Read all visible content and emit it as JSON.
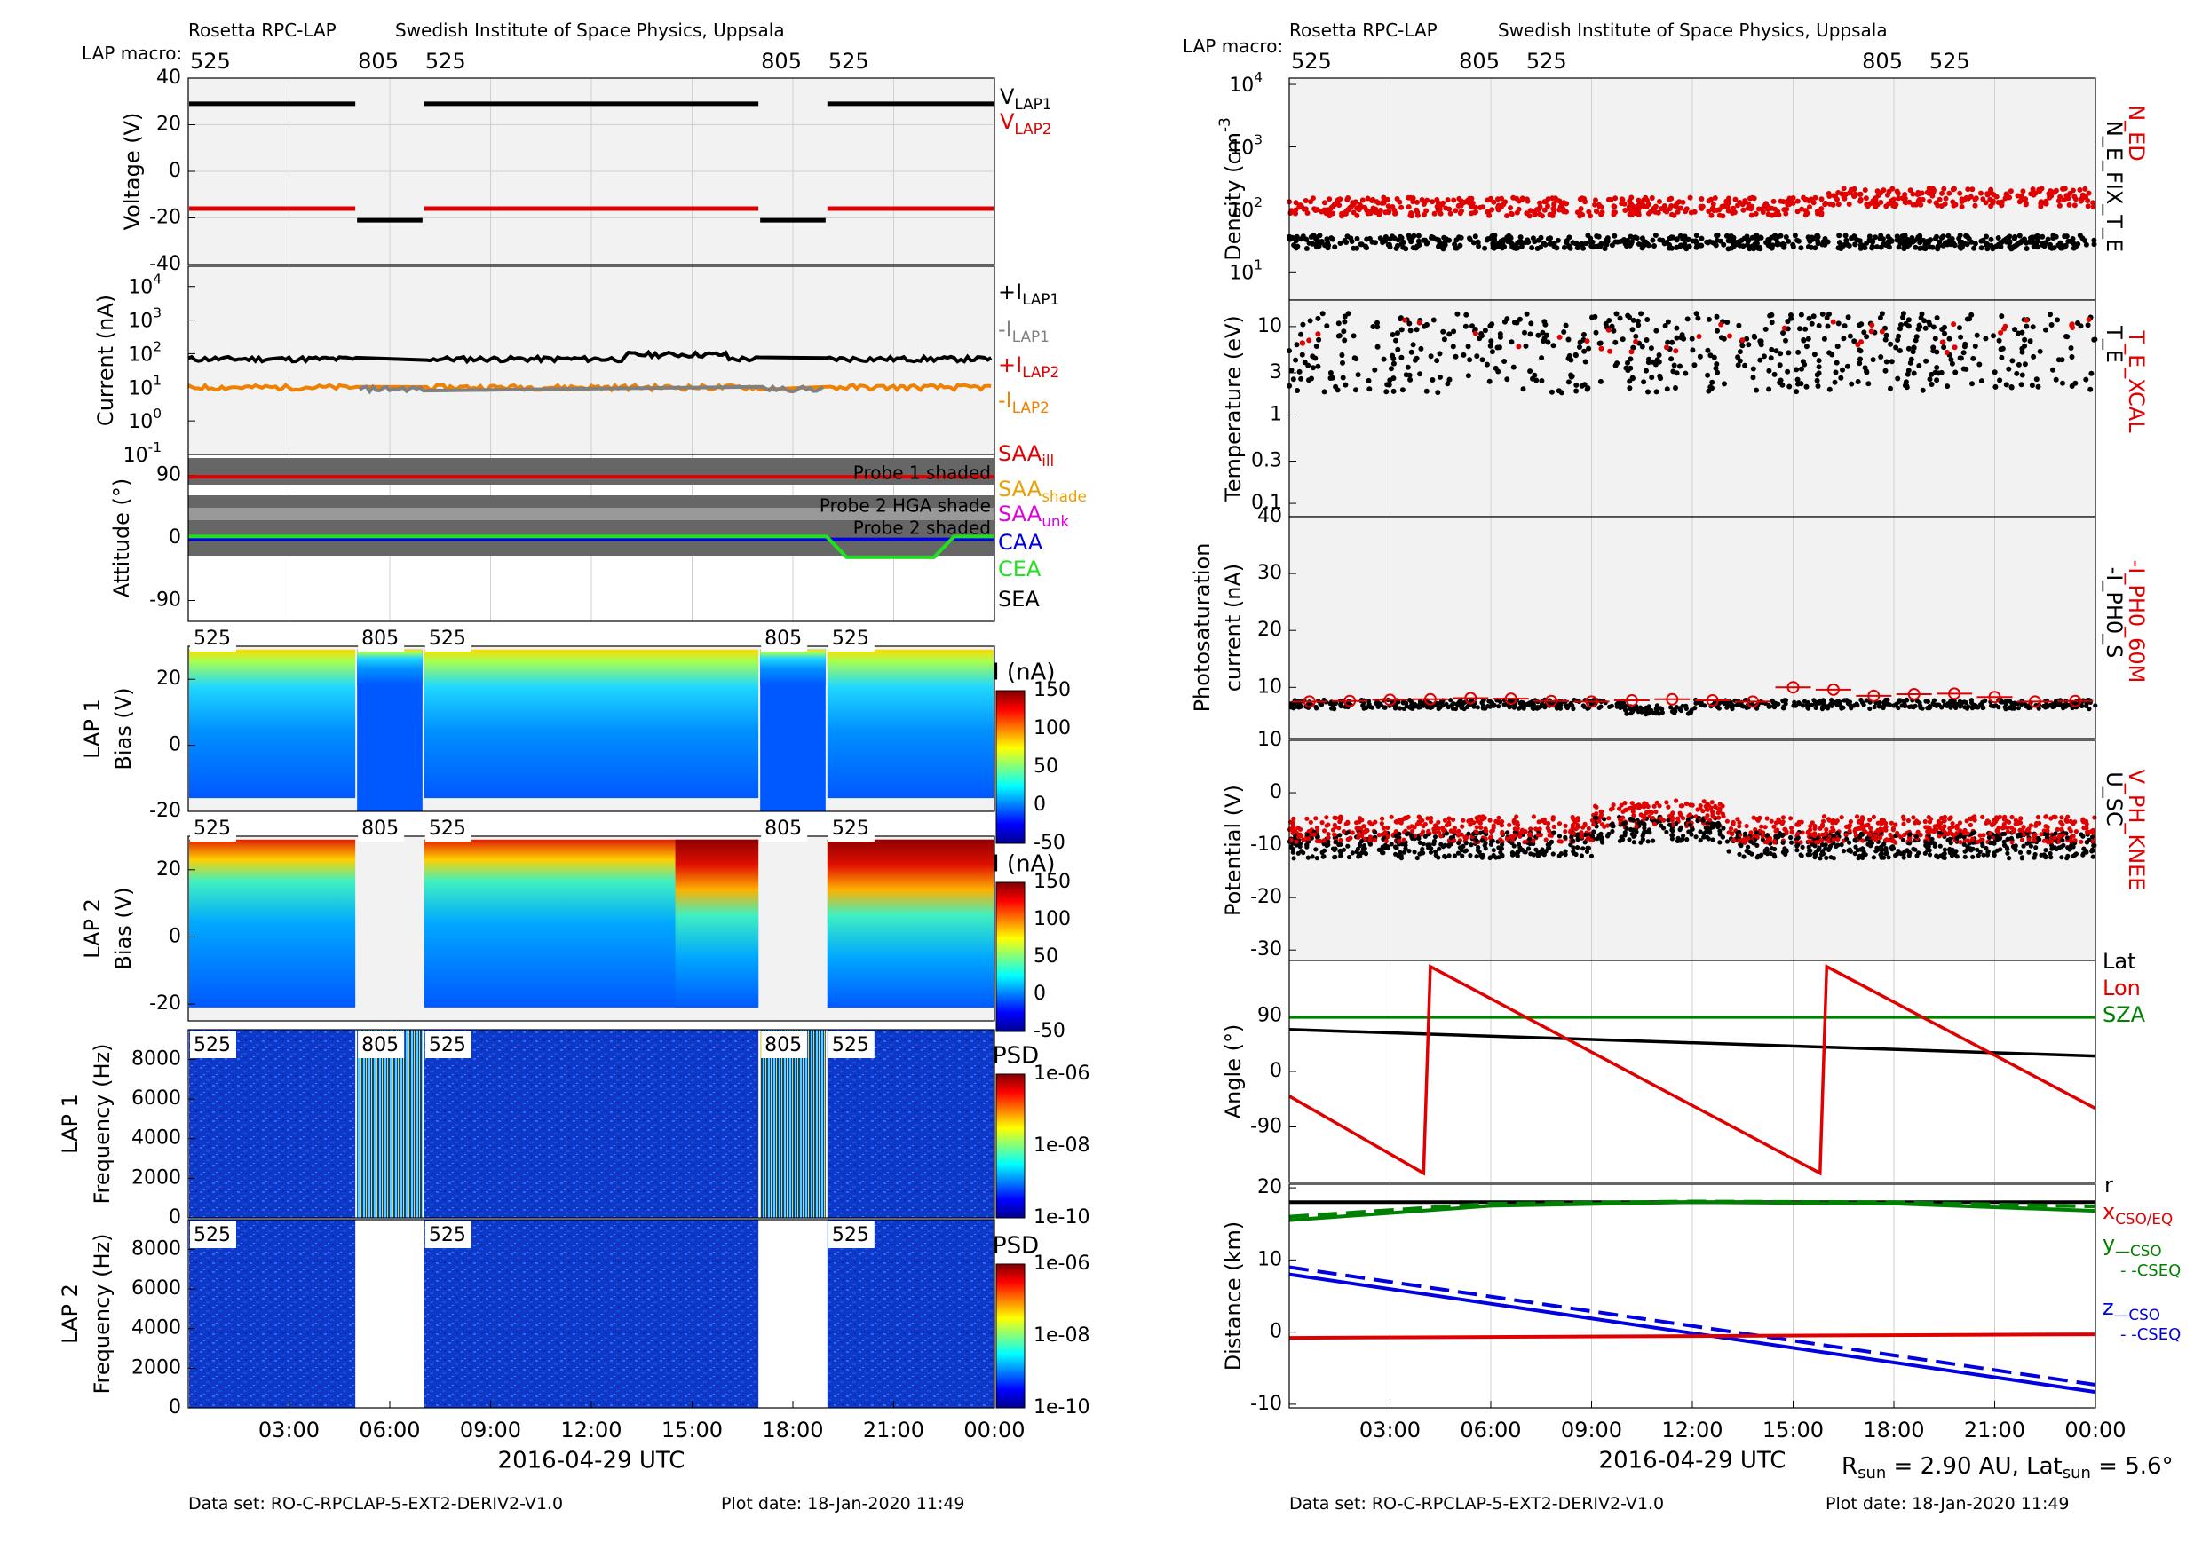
{
  "header": {
    "instrument": "Rosetta RPC-LAP",
    "institute": "Swedish Institute of Space Physics, Uppsala",
    "macro_label": "LAP macro:",
    "dataset": "Data set: RO-C-RPCLAP-5-EXT2-DERIV2-V1.0",
    "plot_date": "Plot date: 18-Jan-2020 11:49",
    "xlabel": "2016-04-29 UTC",
    "rsun": "R_sun = 2.90 AU, Lat_sun = 5.6°"
  },
  "time_axis": {
    "range_hours": [
      0,
      24
    ],
    "tick_labels": [
      "03:00",
      "06:00",
      "09:00",
      "12:00",
      "15:00",
      "18:00",
      "21:00",
      "00:00"
    ],
    "tick_hours": [
      3,
      6,
      9,
      12,
      15,
      18,
      21,
      24
    ]
  },
  "macros": [
    {
      "label": "525",
      "start": 0,
      "end": 5.0
    },
    {
      "label": "805",
      "start": 5.0,
      "end": 7.0
    },
    {
      "label": "525",
      "start": 7.0,
      "end": 17.0
    },
    {
      "label": "805",
      "start": 17.0,
      "end": 19.0
    },
    {
      "label": "525",
      "start": 19.0,
      "end": 24.0
    }
  ],
  "chart_data": [
    {
      "id": "voltage",
      "type": "line",
      "ylabel": "Voltage (V)",
      "ylim": [
        -40,
        40
      ],
      "yticks": [
        -40,
        -20,
        0,
        20,
        40
      ],
      "legend": [
        {
          "name": "V_LAP1",
          "color": "#000000"
        },
        {
          "name": "V_LAP2",
          "color": "#e00000"
        }
      ],
      "series": [
        {
          "name": "V_LAP1",
          "color": "#000000",
          "segments": [
            [
              0,
              5.0,
              29
            ],
            [
              5.0,
              7.0,
              -21
            ],
            [
              7.0,
              17.0,
              29
            ],
            [
              17.0,
              19.0,
              -21
            ],
            [
              19.0,
              24.0,
              29
            ]
          ]
        },
        {
          "name": "V_LAP2",
          "color": "#e00000",
          "segments": [
            [
              0,
              5.0,
              -16
            ],
            [
              7.0,
              17.0,
              -16
            ],
            [
              19.0,
              24.0,
              -16
            ]
          ]
        }
      ]
    },
    {
      "id": "current",
      "type": "line",
      "ylabel": "Current (nA)",
      "yscale": "log",
      "ytick_exponents": [
        -1,
        0,
        1,
        2,
        3,
        4
      ],
      "legend": [
        {
          "name": "+I_LAP1",
          "color": "#000000"
        },
        {
          "name": "-I_LAP1",
          "color": "#808080"
        },
        {
          "name": "+I_LAP2",
          "color": "#e00000"
        },
        {
          "name": "-I_LAP2",
          "color": "#f08000"
        }
      ],
      "series": [
        {
          "name": "+I_LAP1",
          "color": "#000000",
          "approx_value": 70
        },
        {
          "name": "-I_LAP2",
          "color": "#f08000",
          "approx_value": 10
        },
        {
          "name": "-I_LAP1",
          "color": "#808080",
          "approx_value": 9
        }
      ]
    },
    {
      "id": "attitude",
      "type": "line",
      "ylabel": "Attitude (°)",
      "ylim": [
        -120,
        120
      ],
      "yticks": [
        -90,
        0,
        90
      ],
      "annotations": [
        "Probe 1 shaded",
        "Probe 2 HGA shade",
        "Probe 2 shaded"
      ],
      "legend": [
        {
          "name": "SAA_ill",
          "color": "#e00000"
        },
        {
          "name": "SAA_shade",
          "color": "#e8a000"
        },
        {
          "name": "SAA_unk",
          "color": "#e000e0"
        },
        {
          "name": "CAA",
          "color": "#0000e0"
        },
        {
          "name": "CEA",
          "color": "#20e020"
        },
        {
          "name": "SEA",
          "color": "#000000"
        }
      ],
      "series": [
        {
          "name": "SAA_ill",
          "color": "#e00000",
          "value": 88
        },
        {
          "name": "CAA",
          "color": "#0000e0",
          "value": -2
        },
        {
          "name": "CEA",
          "color": "#20e020",
          "value": 2,
          "dip": {
            "start": 19.0,
            "end": 22.8,
            "value": -28
          }
        }
      ]
    },
    {
      "id": "lap1bias",
      "type": "heatmap",
      "ylabel": "LAP 1 Bias (V)",
      "ylim": [
        -20,
        30
      ],
      "yticks": [
        -20,
        0,
        20
      ],
      "colorbar": {
        "label": "I (nA)",
        "ticks": [
          150,
          100,
          50,
          0,
          -50
        ]
      }
    },
    {
      "id": "lap2bias",
      "type": "heatmap",
      "ylabel": "LAP 2 Bias (V)",
      "ylim": [
        -25,
        30
      ],
      "yticks": [
        -20,
        0,
        20
      ],
      "colorbar": {
        "label": "I (nA)",
        "ticks": [
          150,
          100,
          50,
          0,
          -50
        ]
      }
    },
    {
      "id": "lap1freq",
      "type": "heatmap",
      "ylabel": "LAP 1 Frequency (Hz)",
      "ylim": [
        0,
        9500
      ],
      "yticks": [
        0,
        2000,
        4000,
        6000,
        8000
      ],
      "colorbar": {
        "label": "PSD",
        "ticks": [
          "1e-06",
          "1e-08",
          "1e-10"
        ]
      }
    },
    {
      "id": "lap2freq",
      "type": "heatmap",
      "ylabel": "LAP 2 Frequency (Hz)",
      "ylim": [
        0,
        9500
      ],
      "yticks": [
        0,
        2000,
        4000,
        6000,
        8000
      ],
      "colorbar": {
        "label": "PSD",
        "ticks": [
          "1e-06",
          "1e-08",
          "1e-10"
        ]
      }
    },
    {
      "id": "density",
      "type": "scatter",
      "ylabel": "Density (cm^-3)",
      "yscale": "log",
      "ytick_exponents": [
        1,
        2,
        3,
        4
      ],
      "legend": [
        {
          "name": "N_ED",
          "color": "#e00000"
        },
        {
          "name": "N_E_FIX_T_E",
          "color": "#000000"
        }
      ],
      "series": [
        {
          "name": "N_ED",
          "color": "#e00000",
          "approx_value": 110
        },
        {
          "name": "N_E_FIX_T_E",
          "color": "#000000",
          "approx_value": 30
        }
      ]
    },
    {
      "id": "temperature",
      "type": "scatter",
      "ylabel": "Temperature (eV)",
      "yscale": "log",
      "ytick_values": [
        0.1,
        0.3,
        1,
        3,
        10
      ],
      "ytick_labels": [
        "0.1",
        "0.3",
        "1",
        "3",
        "10"
      ],
      "legend": [
        {
          "name": "T_E_XCAL",
          "color": "#e00000"
        },
        {
          "name": "T_E",
          "color": "#000000"
        }
      ],
      "series": [
        {
          "name": "T_E",
          "color": "#000000",
          "approx_value": 5
        },
        {
          "name": "T_E_XCAL",
          "color": "#e00000",
          "approx_value": 8
        }
      ]
    },
    {
      "id": "photo",
      "type": "scatter",
      "ylabel": "Photosaturation current (nA)",
      "ylim": [
        10,
        40
      ],
      "yticks": [
        10,
        20,
        30,
        40
      ],
      "legend": [
        {
          "name": "-I_PH0_60M",
          "color": "#e00000"
        },
        {
          "name": "-I_PH0_S",
          "color": "#000000"
        }
      ],
      "series": [
        {
          "name": "-I_PH0_S",
          "color": "#000000",
          "approx_value": 7
        },
        {
          "name": "-I_PH0_60M",
          "color": "#e00000",
          "values": [
            7.5,
            7.6,
            7.8,
            7.9,
            8.1,
            8.0,
            7.6,
            7.5,
            7.7,
            7.9,
            7.7,
            7.5,
            10.0,
            9.6,
            8.5,
            8.8,
            8.9,
            8.3,
            7.5,
            7.6
          ]
        }
      ]
    },
    {
      "id": "potential",
      "type": "scatter",
      "ylabel": "Potential (V)",
      "ylim": [
        -32,
        10
      ],
      "yticks": [
        -30,
        -20,
        -10,
        0,
        10
      ],
      "legend": [
        {
          "name": "V_PH_KNEE",
          "color": "#e00000"
        },
        {
          "name": "U_SC",
          "color": "#000000"
        }
      ],
      "series": [
        {
          "name": "U_SC",
          "color": "#000000",
          "approx_value": -10
        },
        {
          "name": "V_PH_KNEE",
          "color": "#e00000",
          "approx_value": -7
        }
      ]
    },
    {
      "id": "angle",
      "type": "line",
      "ylabel": "Angle (°)",
      "ylim": [
        -180,
        180
      ],
      "yticks": [
        -90,
        0,
        90
      ],
      "legend": [
        {
          "name": "Lat",
          "color": "#000000"
        },
        {
          "name": "Lon",
          "color": "#e00000"
        },
        {
          "name": "SZA",
          "color": "#008000"
        }
      ],
      "series": [
        {
          "name": "Lat",
          "color": "#000000",
          "x": [
            0,
            24
          ],
          "y": [
            68,
            25
          ]
        },
        {
          "name": "SZA",
          "color": "#008000",
          "x": [
            0,
            24
          ],
          "y": [
            88,
            88
          ]
        },
        {
          "name": "Lon",
          "color": "#e00000",
          "x": [
            0,
            4.0,
            4.2,
            15.8,
            16.0,
            24
          ],
          "y": [
            -40,
            -165,
            170,
            -165,
            170,
            -60
          ]
        }
      ]
    },
    {
      "id": "distance",
      "type": "line",
      "ylabel": "Distance (km)",
      "ylim": [
        -10,
        20
      ],
      "yticks": [
        -10,
        0,
        10,
        20
      ],
      "legend": [
        {
          "name": "r",
          "color": "#000000"
        },
        {
          "name": "x_CSO/EQ",
          "color": "#e00000"
        },
        {
          "name": "y_—CSO",
          "color": "#008000"
        },
        {
          "name": "- -CSEQ",
          "color": "#008000"
        },
        {
          "name": "z_—CSO",
          "color": "#0000e0"
        },
        {
          "name": "- -CSEQ",
          "color": "#0000e0"
        }
      ],
      "series": [
        {
          "name": "r",
          "color": "#000000",
          "x": [
            0,
            24
          ],
          "y": [
            18.0,
            18.0
          ]
        },
        {
          "name": "y CSO",
          "color": "#008000",
          "x": [
            0,
            6,
            12,
            18,
            24
          ],
          "y": [
            15.5,
            17.5,
            18.0,
            17.8,
            16.8
          ]
        },
        {
          "name": "y CSEQ",
          "color": "#008000",
          "dashed": true,
          "x": [
            0,
            6,
            12,
            18,
            24
          ],
          "y": [
            16.0,
            17.8,
            18.1,
            18.0,
            17.4
          ]
        },
        {
          "name": "z CSO",
          "color": "#0000e0",
          "x": [
            0,
            24
          ],
          "y": [
            8.0,
            -8.3
          ]
        },
        {
          "name": "z CSEQ",
          "color": "#0000e0",
          "dashed": true,
          "x": [
            0,
            24
          ],
          "y": [
            9.0,
            -7.3
          ]
        },
        {
          "name": "x",
          "color": "#e00000",
          "x": [
            0,
            24
          ],
          "y": [
            -0.8,
            -0.3
          ]
        }
      ]
    }
  ]
}
